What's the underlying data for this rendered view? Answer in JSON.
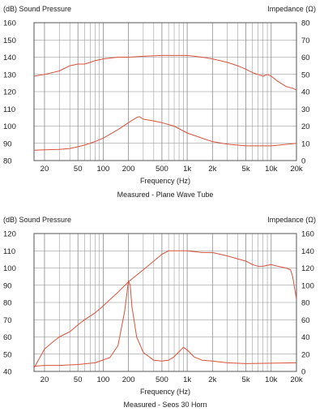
{
  "colors": {
    "curve": "#d9513b",
    "grid": "#8a8a8a",
    "frame": "#555555"
  },
  "chart_data": [
    {
      "type": "line",
      "caption": "Measured - Plane Wave Tube",
      "xlabel": "Frequency (Hz)",
      "ylabel_left": "(dB) Sound Pressure",
      "ylabel_right": "Impedance (Ω)",
      "xscale": "log",
      "xlim": [
        15,
        20000
      ],
      "ylim_left": [
        80,
        160
      ],
      "ylim_right": [
        0,
        80
      ],
      "grid": true,
      "x_ticks": [
        {
          "value": 20,
          "label": "20"
        },
        {
          "value": 50,
          "label": "50"
        },
        {
          "value": 100,
          "label": "100"
        },
        {
          "value": 200,
          "label": "200"
        },
        {
          "value": 500,
          "label": "500"
        },
        {
          "value": 1000,
          "label": "1k"
        },
        {
          "value": 2000,
          "label": "2k"
        },
        {
          "value": 5000,
          "label": "5k"
        },
        {
          "value": 10000,
          "label": "10k"
        },
        {
          "value": 20000,
          "label": "20k"
        }
      ],
      "y_ticks_left": [
        80,
        90,
        100,
        110,
        120,
        130,
        140,
        150,
        160
      ],
      "y_ticks_right": [
        0,
        10,
        20,
        30,
        40,
        50,
        60,
        70,
        80
      ],
      "series": [
        {
          "axis": "left",
          "x": [
            15,
            20,
            30,
            40,
            50,
            60,
            70,
            80,
            100,
            150,
            200,
            300,
            500,
            700,
            1000,
            1500,
            2000,
            3000,
            4000,
            5000,
            6000,
            7000,
            8000,
            9000,
            10000,
            12000,
            15000,
            18000,
            20000
          ],
          "y": [
            129,
            130,
            132,
            135,
            136,
            136,
            137,
            138,
            139,
            140,
            140,
            140.5,
            141,
            141,
            141,
            140,
            139,
            137,
            135,
            133,
            131,
            130,
            129,
            130,
            129,
            126,
            123,
            122,
            121
          ]
        },
        {
          "axis": "right",
          "x": [
            15,
            20,
            30,
            40,
            50,
            60,
            80,
            100,
            150,
            200,
            250,
            270,
            300,
            400,
            500,
            700,
            1000,
            1500,
            2000,
            3000,
            5000,
            10000,
            20000
          ],
          "y": [
            6,
            6.2,
            6.5,
            7,
            8,
            9,
            11,
            13,
            18,
            22,
            25,
            25.5,
            24,
            23,
            22,
            20,
            16,
            13,
            11,
            9.5,
            8.5,
            8.5,
            10
          ]
        }
      ]
    },
    {
      "type": "line",
      "caption": "Measured - Seos 30 Horn",
      "xlabel": "Frequency (Hz)",
      "ylabel_left": "(dB) Sound Pressure",
      "ylabel_right": "Impedance (Ω)",
      "xscale": "log",
      "xlim": [
        15,
        20000
      ],
      "ylim_left": [
        40,
        120
      ],
      "ylim_right": [
        0,
        160
      ],
      "grid": true,
      "x_ticks": [
        {
          "value": 20,
          "label": "20"
        },
        {
          "value": 50,
          "label": "50"
        },
        {
          "value": 100,
          "label": "100"
        },
        {
          "value": 200,
          "label": "200"
        },
        {
          "value": 500,
          "label": "500"
        },
        {
          "value": 1000,
          "label": "1k"
        },
        {
          "value": 2000,
          "label": "2k"
        },
        {
          "value": 5000,
          "label": "5k"
        },
        {
          "value": 10000,
          "label": "10k"
        },
        {
          "value": 20000,
          "label": "20k"
        }
      ],
      "y_ticks_left": [
        40,
        50,
        60,
        70,
        80,
        90,
        100,
        110,
        120
      ],
      "y_ticks_right": [
        0,
        20,
        40,
        60,
        80,
        100,
        120,
        140,
        160
      ],
      "series": [
        {
          "axis": "left",
          "x": [
            15,
            20,
            25,
            30,
            40,
            50,
            60,
            80,
            100,
            150,
            200,
            300,
            400,
            500,
            600,
            800,
            1000,
            1500,
            2000,
            3000,
            5000,
            6000,
            7000,
            8000,
            10000,
            12000,
            15000,
            17000,
            18000,
            20000
          ],
          "y": [
            42,
            53,
            57,
            60,
            63,
            67,
            70,
            74,
            78,
            86,
            92,
            99,
            104,
            108,
            110,
            110,
            110,
            109,
            109,
            107,
            104,
            102,
            101,
            101,
            102,
            101,
            100,
            99,
            95,
            82
          ]
        },
        {
          "axis": "right",
          "x": [
            15,
            20,
            30,
            50,
            80,
            120,
            150,
            180,
            200,
            210,
            220,
            250,
            300,
            400,
            500,
            600,
            700,
            800,
            900,
            1000,
            1200,
            1500,
            2000,
            3000,
            5000,
            10000,
            20000
          ],
          "y": [
            6,
            7,
            7,
            8,
            10,
            16,
            30,
            70,
            105,
            100,
            75,
            40,
            22,
            13,
            12,
            13,
            17,
            23,
            28,
            25,
            17,
            13,
            12,
            10,
            9,
            9.5,
            10
          ]
        }
      ]
    }
  ]
}
